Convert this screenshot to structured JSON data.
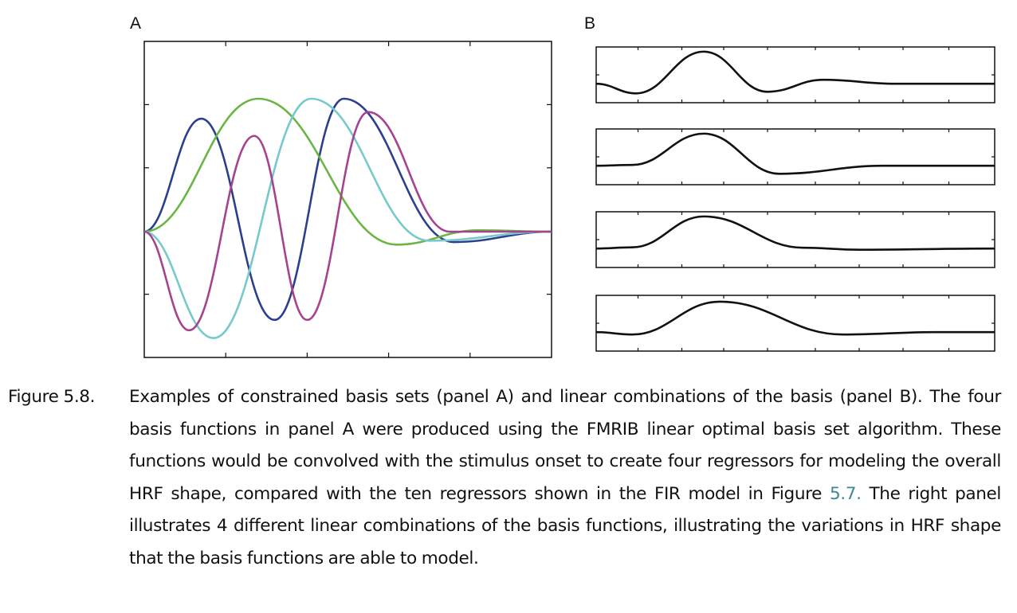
{
  "panels": {
    "a_label": "A",
    "b_label": "B"
  },
  "chart_data": [
    {
      "type": "line",
      "panel": "A",
      "grid": false,
      "series": [
        {
          "color": "#2c3f8f",
          "peaks": [
            [
              0.0,
              0.0
            ],
            [
              0.14,
              0.85
            ],
            [
              0.32,
              -0.68
            ],
            [
              0.49,
              1.0
            ],
            [
              0.76,
              -0.08
            ],
            [
              1.0,
              0.0
            ]
          ]
        },
        {
          "color": "#6ab544",
          "peaks": [
            [
              0.0,
              0.0
            ],
            [
              0.28,
              1.0
            ],
            [
              0.62,
              -0.1
            ],
            [
              0.82,
              0.01
            ],
            [
              1.0,
              0.0
            ]
          ]
        },
        {
          "color": "#78c9cb",
          "peaks": [
            [
              0.0,
              0.0
            ],
            [
              0.17,
              -0.82
            ],
            [
              0.41,
              1.0
            ],
            [
              0.7,
              -0.07
            ],
            [
              1.0,
              0.0
            ]
          ]
        },
        {
          "color": "#a5438f",
          "peaks": [
            [
              0.0,
              0.0
            ],
            [
              0.11,
              -0.76
            ],
            [
              0.27,
              0.72
            ],
            [
              0.4,
              -0.68
            ],
            [
              0.55,
              0.9
            ],
            [
              0.75,
              0.0
            ],
            [
              1.0,
              0.0
            ]
          ]
        }
      ]
    },
    {
      "type": "line",
      "panel": "B",
      "grid": false,
      "series": [
        {
          "color": "#111111",
          "peaks": [
            [
              0.0,
              0.0
            ],
            [
              0.1,
              -0.24
            ],
            [
              0.27,
              0.8
            ],
            [
              0.43,
              -0.2
            ],
            [
              0.57,
              0.1
            ],
            [
              0.75,
              0.0
            ],
            [
              1.0,
              0.0
            ]
          ]
        },
        {
          "color": "#111111",
          "peaks": [
            [
              0.0,
              0.0
            ],
            [
              0.09,
              0.02
            ],
            [
              0.27,
              0.8
            ],
            [
              0.46,
              -0.2
            ],
            [
              0.72,
              0.0
            ],
            [
              1.0,
              0.0
            ]
          ]
        },
        {
          "color": "#111111",
          "peaks": [
            [
              0.0,
              0.0
            ],
            [
              0.09,
              0.03
            ],
            [
              0.27,
              0.8
            ],
            [
              0.52,
              0.02
            ],
            [
              0.66,
              -0.03
            ],
            [
              1.0,
              0.0
            ]
          ]
        },
        {
          "color": "#111111",
          "peaks": [
            [
              0.0,
              0.0
            ],
            [
              0.09,
              -0.06
            ],
            [
              0.31,
              0.76
            ],
            [
              0.62,
              -0.06
            ],
            [
              0.85,
              0.0
            ],
            [
              1.0,
              0.0
            ]
          ]
        }
      ]
    }
  ],
  "caption": {
    "label": "Figure 5.8.",
    "text_before_ref": "Examples of constrained basis sets (panel A) and linear combinations of the basis (panel B). The four basis functions in panel A were produced using the FMRIB linear optimal basis set algorithm. These functions would be convolved with the stimulus onset to create four regressors for modeling the overall HRF shape, compared with the ten regressors shown in the FIR model in Figure ",
    "ref": "5.7.",
    "text_after_ref": " The right panel illustrates 4 different linear combinations of the basis functions, illustrating the variations in HRF shape that the basis functions are able to model."
  }
}
